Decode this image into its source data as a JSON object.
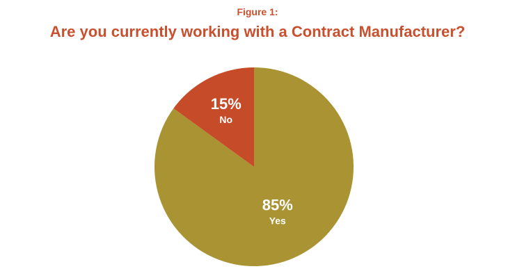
{
  "figure_label": "Figure 1:",
  "chart_data": {
    "type": "pie",
    "title": "Are you currently working with a Contract Manufacturer?",
    "slices": [
      {
        "label": "Yes",
        "value": 85,
        "display": "85%",
        "color": "#a99332"
      },
      {
        "label": "No",
        "value": 15,
        "display": "15%",
        "color": "#c64b29"
      }
    ]
  }
}
